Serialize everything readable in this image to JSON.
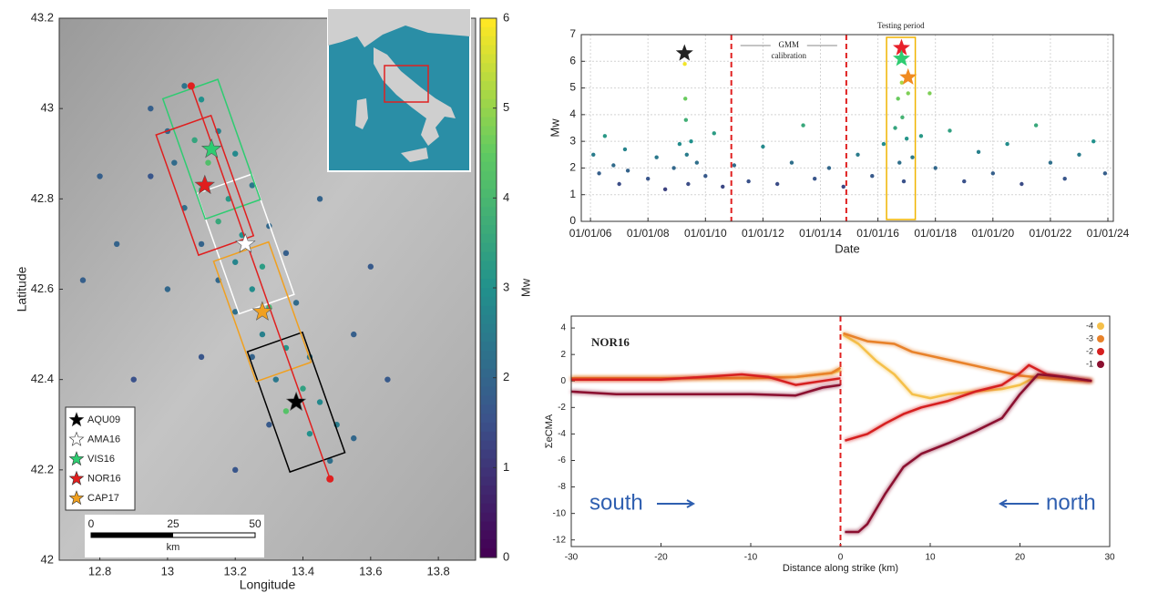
{
  "chart_data": [
    {
      "type": "scatter",
      "xlabel": "Longitude",
      "ylabel": "Latitude",
      "xlim": [
        12.68,
        13.91
      ],
      "ylim": [
        42,
        43.2
      ],
      "xticks": [
        12.8,
        13,
        13.2,
        13.4,
        13.6,
        13.8
      ],
      "yticks": [
        42,
        42.2,
        42.4,
        42.6,
        42.8,
        43,
        43.2
      ],
      "x": [
        12.95,
        13.05,
        13.1,
        13.0,
        13.08,
        13.15,
        13.12,
        13.02,
        13.2,
        12.95,
        13.1,
        13.18,
        13.25,
        13.05,
        13.15,
        13.22,
        13.3,
        13.1,
        13.2,
        13.28,
        13.35,
        13.15,
        13.25,
        13.3,
        13.2,
        13.38,
        13.28,
        13.35,
        13.25,
        13.42,
        13.32,
        13.4,
        13.45,
        13.35,
        13.5,
        13.42,
        13.55,
        13.3,
        13.48,
        12.8,
        12.85,
        13.0,
        13.1,
        13.55,
        13.6,
        13.45,
        12.9,
        13.2,
        12.75,
        13.65
      ],
      "y": [
        43.0,
        43.05,
        43.02,
        42.95,
        42.93,
        42.95,
        42.88,
        42.88,
        42.9,
        42.85,
        42.82,
        42.8,
        42.83,
        42.78,
        42.75,
        42.72,
        42.74,
        42.7,
        42.66,
        42.65,
        42.68,
        42.62,
        42.6,
        42.56,
        42.55,
        42.57,
        42.5,
        42.47,
        42.45,
        42.45,
        42.4,
        42.38,
        42.35,
        42.33,
        42.3,
        42.28,
        42.27,
        42.3,
        42.22,
        42.85,
        42.7,
        42.6,
        42.45,
        42.5,
        42.65,
        42.8,
        42.4,
        42.2,
        42.62,
        42.4
      ],
      "values": [
        1.8,
        2.3,
        3.0,
        2.0,
        3.5,
        2.6,
        4.2,
        2.1,
        2.8,
        1.6,
        3.8,
        3.2,
        2.4,
        2.2,
        3.6,
        3.0,
        2.0,
        1.9,
        2.7,
        3.3,
        1.8,
        2.0,
        2.9,
        4.0,
        2.2,
        2.1,
        2.6,
        3.1,
        1.9,
        2.3,
        2.4,
        3.4,
        2.8,
        4.3,
        2.5,
        3.0,
        2.0,
        1.7,
        2.2,
        1.8,
        1.9,
        2.0,
        1.6,
        1.8,
        1.7,
        1.9,
        1.5,
        1.6,
        1.8,
        1.7
      ],
      "colorbar": {
        "label": "Mw",
        "lim": [
          0,
          6
        ],
        "ticks": [
          0,
          1,
          2,
          3,
          4,
          5,
          6
        ]
      },
      "stars": [
        {
          "name": "AQU09",
          "color": "#000000",
          "x": 13.38,
          "y": 42.35
        },
        {
          "name": "AMA16",
          "color": "#ffffff",
          "x": 13.23,
          "y": 42.7
        },
        {
          "name": "VIS16",
          "color": "#2ecc71",
          "x": 13.13,
          "y": 42.91
        },
        {
          "name": "NOR16",
          "color": "#e01e1e",
          "x": 13.11,
          "y": 42.83
        },
        {
          "name": "CAP17",
          "color": "#f0a020",
          "x": 13.28,
          "y": 42.55
        }
      ],
      "legend": "lower left",
      "profile": {
        "x": [
          13.07,
          13.48
        ],
        "y": [
          43.05,
          42.18
        ],
        "color": "#e02020"
      },
      "scale_bar": {
        "ticks": [
          0,
          25,
          50
        ],
        "unit": "km"
      }
    },
    {
      "type": "scatter",
      "xlabel": "Date",
      "ylabel": "Mw",
      "xlim": [
        2005.68,
        2024.19
      ],
      "ylim": [
        0,
        7
      ],
      "grid": true,
      "xticks": [
        {
          "value": 2006,
          "label": "01/01/06"
        },
        {
          "value": 2008,
          "label": "01/01/08"
        },
        {
          "value": 2010,
          "label": "01/01/10"
        },
        {
          "value": 2012,
          "label": "01/01/12"
        },
        {
          "value": 2014,
          "label": "01/01/14"
        },
        {
          "value": 2016,
          "label": "01/01/16"
        },
        {
          "value": 2018,
          "label": "01/01/18"
        },
        {
          "value": 2020,
          "label": "01/01/20"
        },
        {
          "value": 2022,
          "label": "01/01/22"
        },
        {
          "value": 2024,
          "label": "01/01/24"
        }
      ],
      "yticks": [
        0,
        1,
        2,
        3,
        4,
        5,
        6,
        7
      ],
      "clim": [
        0,
        6
      ],
      "x": [
        2006.1,
        2006.3,
        2006.5,
        2006.8,
        2007.0,
        2007.2,
        2007.3,
        2008.0,
        2008.3,
        2008.6,
        2008.9,
        2009.1,
        2009.28,
        2009.3,
        2009.32,
        2009.35,
        2009.4,
        2009.5,
        2009.7,
        2010.0,
        2010.3,
        2010.6,
        2011.0,
        2011.5,
        2012.0,
        2012.5,
        2013.0,
        2013.4,
        2013.8,
        2014.3,
        2014.8,
        2015.3,
        2015.8,
        2016.2,
        2016.6,
        2016.7,
        2016.75,
        2016.83,
        2016.85,
        2016.9,
        2017.0,
        2017.05,
        2017.2,
        2017.5,
        2017.8,
        2018.0,
        2018.5,
        2019.0,
        2019.5,
        2020.0,
        2020.5,
        2021.0,
        2021.5,
        2022.0,
        2022.5,
        2023.0,
        2023.5,
        2023.9
      ],
      "values": [
        2.5,
        1.8,
        3.2,
        2.1,
        1.4,
        2.7,
        1.9,
        1.6,
        2.4,
        1.2,
        2.0,
        2.9,
        5.9,
        4.6,
        3.8,
        2.5,
        1.4,
        3.0,
        2.2,
        1.7,
        3.3,
        1.3,
        2.1,
        1.5,
        2.8,
        1.4,
        2.2,
        3.6,
        1.6,
        2.0,
        1.3,
        2.5,
        1.7,
        2.9,
        3.5,
        4.6,
        2.2,
        5.2,
        3.9,
        1.5,
        3.1,
        4.8,
        2.4,
        3.2,
        4.8,
        2.0,
        3.4,
        1.5,
        2.6,
        1.8,
        2.9,
        1.4,
        3.6,
        2.2,
        1.6,
        2.5,
        3.0,
        1.8
      ],
      "markers": {
        "x": [
          2009.27,
          2016.82,
          2016.82,
          2017.05
        ],
        "y": [
          6.3,
          6.5,
          6.1,
          5.4
        ],
        "colors": [
          "#222222",
          "#e8202a",
          "#2ecc71",
          "#f08a20"
        ]
      },
      "vlines": {
        "values": [
          2010.9,
          2014.9
        ],
        "color": "#e02020",
        "label": [
          "GMM",
          "calibration"
        ]
      },
      "testing": {
        "xlim": [
          2016.3,
          2017.3
        ],
        "label": "Testing period",
        "color": "#f0b400"
      }
    },
    {
      "type": "line",
      "title": "NOR16",
      "xlabel": "Distance along strike (km)",
      "ylabel": "ΣeCMA",
      "xlim": [
        -30,
        30
      ],
      "ylim": [
        -12.5,
        4.9
      ],
      "xticks": [
        -30,
        -20,
        -10,
        0,
        10,
        20,
        30
      ],
      "yticks": [
        -12,
        -10,
        -8,
        -6,
        -4,
        -2,
        0,
        2,
        4
      ],
      "vline": 0,
      "vline_color": "#e02020",
      "legend": "upper right",
      "annotations": [
        "south",
        "north"
      ],
      "series": [
        {
          "name": "-4",
          "color": "#f5c04a",
          "x": [
            -30,
            -15,
            -5,
            -1,
            0,
            null,
            0.3,
            2,
            4,
            6,
            8,
            10,
            12,
            15,
            18,
            20,
            22,
            25,
            28
          ],
          "values": [
            0.2,
            0.2,
            0.3,
            0.6,
            0.8,
            null,
            3.5,
            2.8,
            1.5,
            0.5,
            -1,
            -1.3,
            -1,
            -0.8,
            -0.6,
            -0.3,
            0.4,
            0.1,
            0
          ]
        },
        {
          "name": "-3",
          "color": "#e8822a",
          "x": [
            -30,
            -10,
            -5,
            -1,
            0,
            null,
            0.3,
            3,
            6,
            8,
            12,
            16,
            20,
            23,
            28
          ],
          "values": [
            0.2,
            0.2,
            0.3,
            0.6,
            1,
            null,
            3.6,
            3.0,
            2.8,
            2.2,
            1.6,
            1.0,
            0.4,
            0.2,
            0
          ]
        },
        {
          "name": "-2",
          "color": "#d62020",
          "x": [
            -30,
            -20,
            -11,
            -8,
            -5,
            -2,
            0,
            null,
            0.5,
            3,
            5,
            7,
            9,
            12,
            15,
            18,
            20,
            21,
            23,
            28
          ],
          "values": [
            0.1,
            0.1,
            0.5,
            0.3,
            -0.3,
            0,
            0.2,
            null,
            -4.5,
            -4.0,
            -3.2,
            -2.5,
            -2.0,
            -1.5,
            -0.8,
            -0.3,
            0.6,
            1.2,
            0.5,
            0
          ]
        },
        {
          "name": "-1",
          "color": "#8b1030",
          "x": [
            -30,
            -25,
            -10,
            -5,
            -2,
            0,
            null,
            0.5,
            2,
            3,
            5,
            7,
            9,
            12,
            15,
            18,
            20,
            22,
            25,
            28
          ],
          "values": [
            -0.8,
            -1,
            -1,
            -1.1,
            -0.5,
            -0.3,
            null,
            -11.4,
            -11.4,
            -10.8,
            -8.5,
            -6.5,
            -5.5,
            -4.7,
            -3.8,
            -2.8,
            -1.0,
            0.5,
            0.3,
            0
          ]
        }
      ]
    }
  ]
}
